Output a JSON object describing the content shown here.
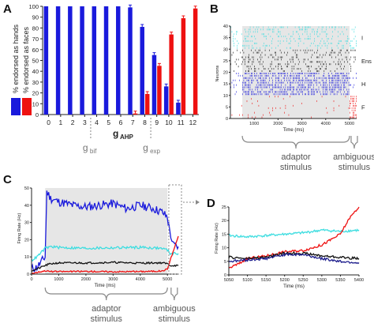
{
  "panel_labels": [
    "A",
    "B",
    "C",
    "D"
  ],
  "colors": {
    "blue": "#1a1adc",
    "red": "#ee1111",
    "cyan": "#3ddde0",
    "black": "#111111",
    "darkblue": "#1c1c8c",
    "gray": "#888888",
    "shade": "#e6e6e6"
  },
  "chart_data": [
    {
      "panel": "A",
      "type": "bar",
      "categories": [
        "0",
        "1",
        "2",
        "3",
        "4",
        "5",
        "6",
        "7",
        "8",
        "9",
        "10",
        "11",
        "12"
      ],
      "series": [
        {
          "name": "% endorsed as hands",
          "color": "blue",
          "values": [
            100,
            100,
            100,
            100,
            100,
            100,
            100,
            99,
            81,
            55,
            26,
            11,
            0
          ]
        },
        {
          "name": "% endorsed as faces",
          "color": "red",
          "values": [
            0,
            0,
            0,
            0,
            0,
            0,
            0,
            1,
            19,
            45,
            74,
            89,
            98
          ]
        }
      ],
      "xlabel_main": "g",
      "xlabel_sub": "AHP",
      "yticks": [
        0,
        10,
        20,
        30,
        40,
        50,
        60,
        70,
        80,
        90,
        100
      ],
      "ylim": [
        0,
        100
      ],
      "annotations": [
        {
          "text": "g",
          "sub": "bif",
          "at_category": "3.5"
        },
        {
          "text": "g",
          "sub": "exp",
          "at_category": "8.5"
        }
      ]
    },
    {
      "panel": "B",
      "type": "scatter",
      "xlabel": "Time (ms)",
      "ylabel": "Neurons",
      "xticks": [
        1000,
        2000,
        3000,
        4000,
        5000
      ],
      "yticks": [
        0,
        5,
        10,
        15,
        20,
        25,
        30,
        35,
        40
      ],
      "xlim": [
        0,
        5300
      ],
      "ylim": [
        0,
        40
      ],
      "groups": [
        {
          "label": "I",
          "range": [
            30,
            40
          ],
          "color": "cyan"
        },
        {
          "label": "Ens",
          "range": [
            20,
            30
          ],
          "color": "black"
        },
        {
          "label": "H",
          "range": [
            10,
            20
          ],
          "color": "blue"
        },
        {
          "label": "F",
          "range": [
            0,
            10
          ],
          "color": "red"
        }
      ],
      "bracket_labels": [
        [
          "adaptor",
          "stimulus"
        ],
        [
          "ambiguous",
          "stimulus"
        ]
      ]
    },
    {
      "panel": "C",
      "type": "line",
      "xlabel": "Time (ms)",
      "ylabel": "Firing Rate (Hz)",
      "xticks": [
        0,
        1000,
        2000,
        3000,
        4000,
        5000
      ],
      "yticks": [
        0,
        10,
        20,
        30,
        40,
        50
      ],
      "xlim": [
        0,
        5400
      ],
      "ylim": [
        0,
        50
      ],
      "series": [
        {
          "color": "blue",
          "x": [
            0,
            200,
            500,
            560,
            700,
            1000,
            1500,
            2000,
            2500,
            3000,
            3500,
            4000,
            4500,
            4800,
            5000,
            5050,
            5200,
            5400
          ],
          "y": [
            3,
            4,
            10,
            48,
            44,
            42,
            40,
            39,
            40,
            41,
            38,
            40,
            38,
            36,
            33,
            28,
            17,
            16
          ]
        },
        {
          "color": "cyan",
          "x": [
            0,
            200,
            500,
            700,
            1000,
            2000,
            3000,
            4000,
            4800,
            5000,
            5100,
            5400
          ],
          "y": [
            8,
            10,
            15,
            16,
            15.5,
            15,
            15.3,
            15.6,
            15,
            14,
            12,
            12
          ]
        },
        {
          "color": "black",
          "x": [
            0,
            200,
            500,
            700,
            1000,
            2000,
            3000,
            4000,
            4800,
            5000,
            5100,
            5400
          ],
          "y": [
            2,
            3,
            5,
            6,
            6.5,
            6.5,
            6.8,
            6.4,
            6.6,
            6,
            5,
            5
          ]
        },
        {
          "color": "red",
          "x": [
            0,
            200,
            500,
            700,
            1000,
            2000,
            3000,
            4000,
            4800,
            5000,
            5100,
            5400
          ],
          "y": [
            0.5,
            1,
            2,
            1.5,
            1.5,
            1.6,
            1.4,
            1.5,
            1.8,
            3,
            8,
            22
          ]
        }
      ],
      "bracket_labels": [
        [
          "adaptor",
          "stimulus"
        ],
        [
          "ambiguous",
          "stimulus"
        ]
      ]
    },
    {
      "panel": "D",
      "type": "line",
      "xlabel": "Time (ms)",
      "ylabel": "Firing Rate (Hz)",
      "xticks": [
        5050,
        5100,
        5150,
        5200,
        5250,
        5300,
        5350,
        5400
      ],
      "yticks": [
        0,
        5,
        10,
        15,
        20,
        25
      ],
      "xlim": [
        5050,
        5400
      ],
      "ylim": [
        0,
        25
      ],
      "series": [
        {
          "color": "cyan",
          "x": [
            5050,
            5100,
            5150,
            5200,
            5250,
            5300,
            5350,
            5400
          ],
          "y": [
            14.5,
            14,
            14.5,
            15,
            15.5,
            16.5,
            16,
            16.5
          ]
        },
        {
          "color": "red",
          "x": [
            5050,
            5075,
            5100,
            5150,
            5200,
            5250,
            5300,
            5325,
            5350,
            5375,
            5400
          ],
          "y": [
            2.5,
            4,
            6,
            7,
            8.5,
            9,
            11,
            13,
            15,
            21,
            25
          ]
        },
        {
          "color": "black",
          "x": [
            5050,
            5100,
            5150,
            5200,
            5250,
            5300,
            5350,
            5400
          ],
          "y": [
            6.5,
            6,
            6.5,
            8,
            8,
            7,
            6.5,
            6
          ]
        },
        {
          "color": "darkblue",
          "x": [
            5050,
            5100,
            5150,
            5200,
            5250,
            5300,
            5350,
            5400
          ],
          "y": [
            5,
            5.5,
            6,
            7.5,
            7.5,
            6,
            5,
            4.5
          ]
        }
      ]
    }
  ]
}
